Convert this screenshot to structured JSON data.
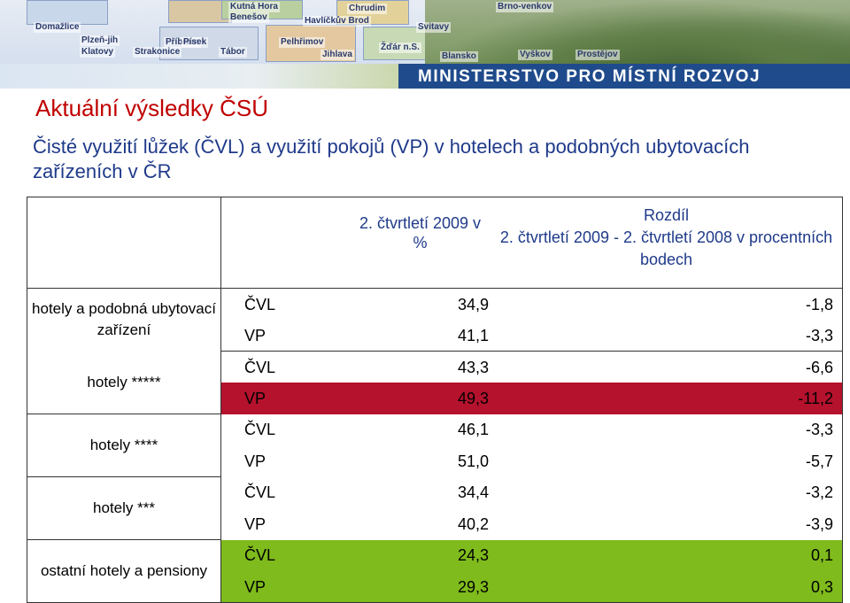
{
  "banner": {
    "ministry": "MINISTERSTVO PRO MÍSTNÍ ROZVOJ",
    "cities": [
      "Kutná Hora",
      "Chrudim",
      "Havlíčkův Brod",
      "Benešov",
      "Svitavy",
      "Domažlice",
      "Plzeň-jih",
      "Příbram",
      "Pelhřimov",
      "Klatovy",
      "Strakonice",
      "Písek",
      "Tábor",
      "Jihlava",
      "Žďár n.S.",
      "Blansko",
      "Brno-venkov",
      "Vyškov",
      "Prostějov"
    ]
  },
  "title": "Aktuální výsledky ČSÚ",
  "subtitle": "Čisté využití lůžek (ČVL) a využití pokojů (VP) v hotelech a podobných ubytovacích zařízeních v ČR",
  "table": {
    "header_value": "2. čtvrtletí 2009 v %",
    "header_diff_1": "Rozdíl",
    "header_diff_2": "2. čtvrtletí 2009 - 2. čtvrtletí 2008 v procentních bodech",
    "groups": [
      {
        "label": "hotely a podobná ubytovací zařízení",
        "rows": [
          {
            "type": "ČVL",
            "value": "34,9",
            "diff": "-1,8"
          },
          {
            "type": "VP",
            "value": "41,1",
            "diff": "-3,3"
          }
        ]
      },
      {
        "label": "hotely *****",
        "rows": [
          {
            "type": "ČVL",
            "value": "43,3",
            "diff": "-6,6"
          },
          {
            "type": "VP",
            "value": "49,3",
            "diff": "-11,2"
          }
        ]
      },
      {
        "label": "hotely ****",
        "rows": [
          {
            "type": "ČVL",
            "value": "46,1",
            "diff": "-3,3"
          },
          {
            "type": "VP",
            "value": "51,0",
            "diff": "-5,7"
          }
        ]
      },
      {
        "label": "hotely ***",
        "rows": [
          {
            "type": "ČVL",
            "value": "34,4",
            "diff": "-3,2"
          },
          {
            "type": "VP",
            "value": "40,2",
            "diff": "-3,9"
          }
        ]
      },
      {
        "label": "ostatní hotely a pensiony",
        "rows": [
          {
            "type": "ČVL",
            "value": "24,3",
            "diff": "0,1"
          },
          {
            "type": "VP",
            "value": "29,3",
            "diff": "0,3"
          }
        ]
      }
    ]
  },
  "colors": {
    "title": "#c00000",
    "subtitle": "#1f3a8a",
    "highlight_red": "#b5122d",
    "highlight_green": "#7fbb1c"
  }
}
